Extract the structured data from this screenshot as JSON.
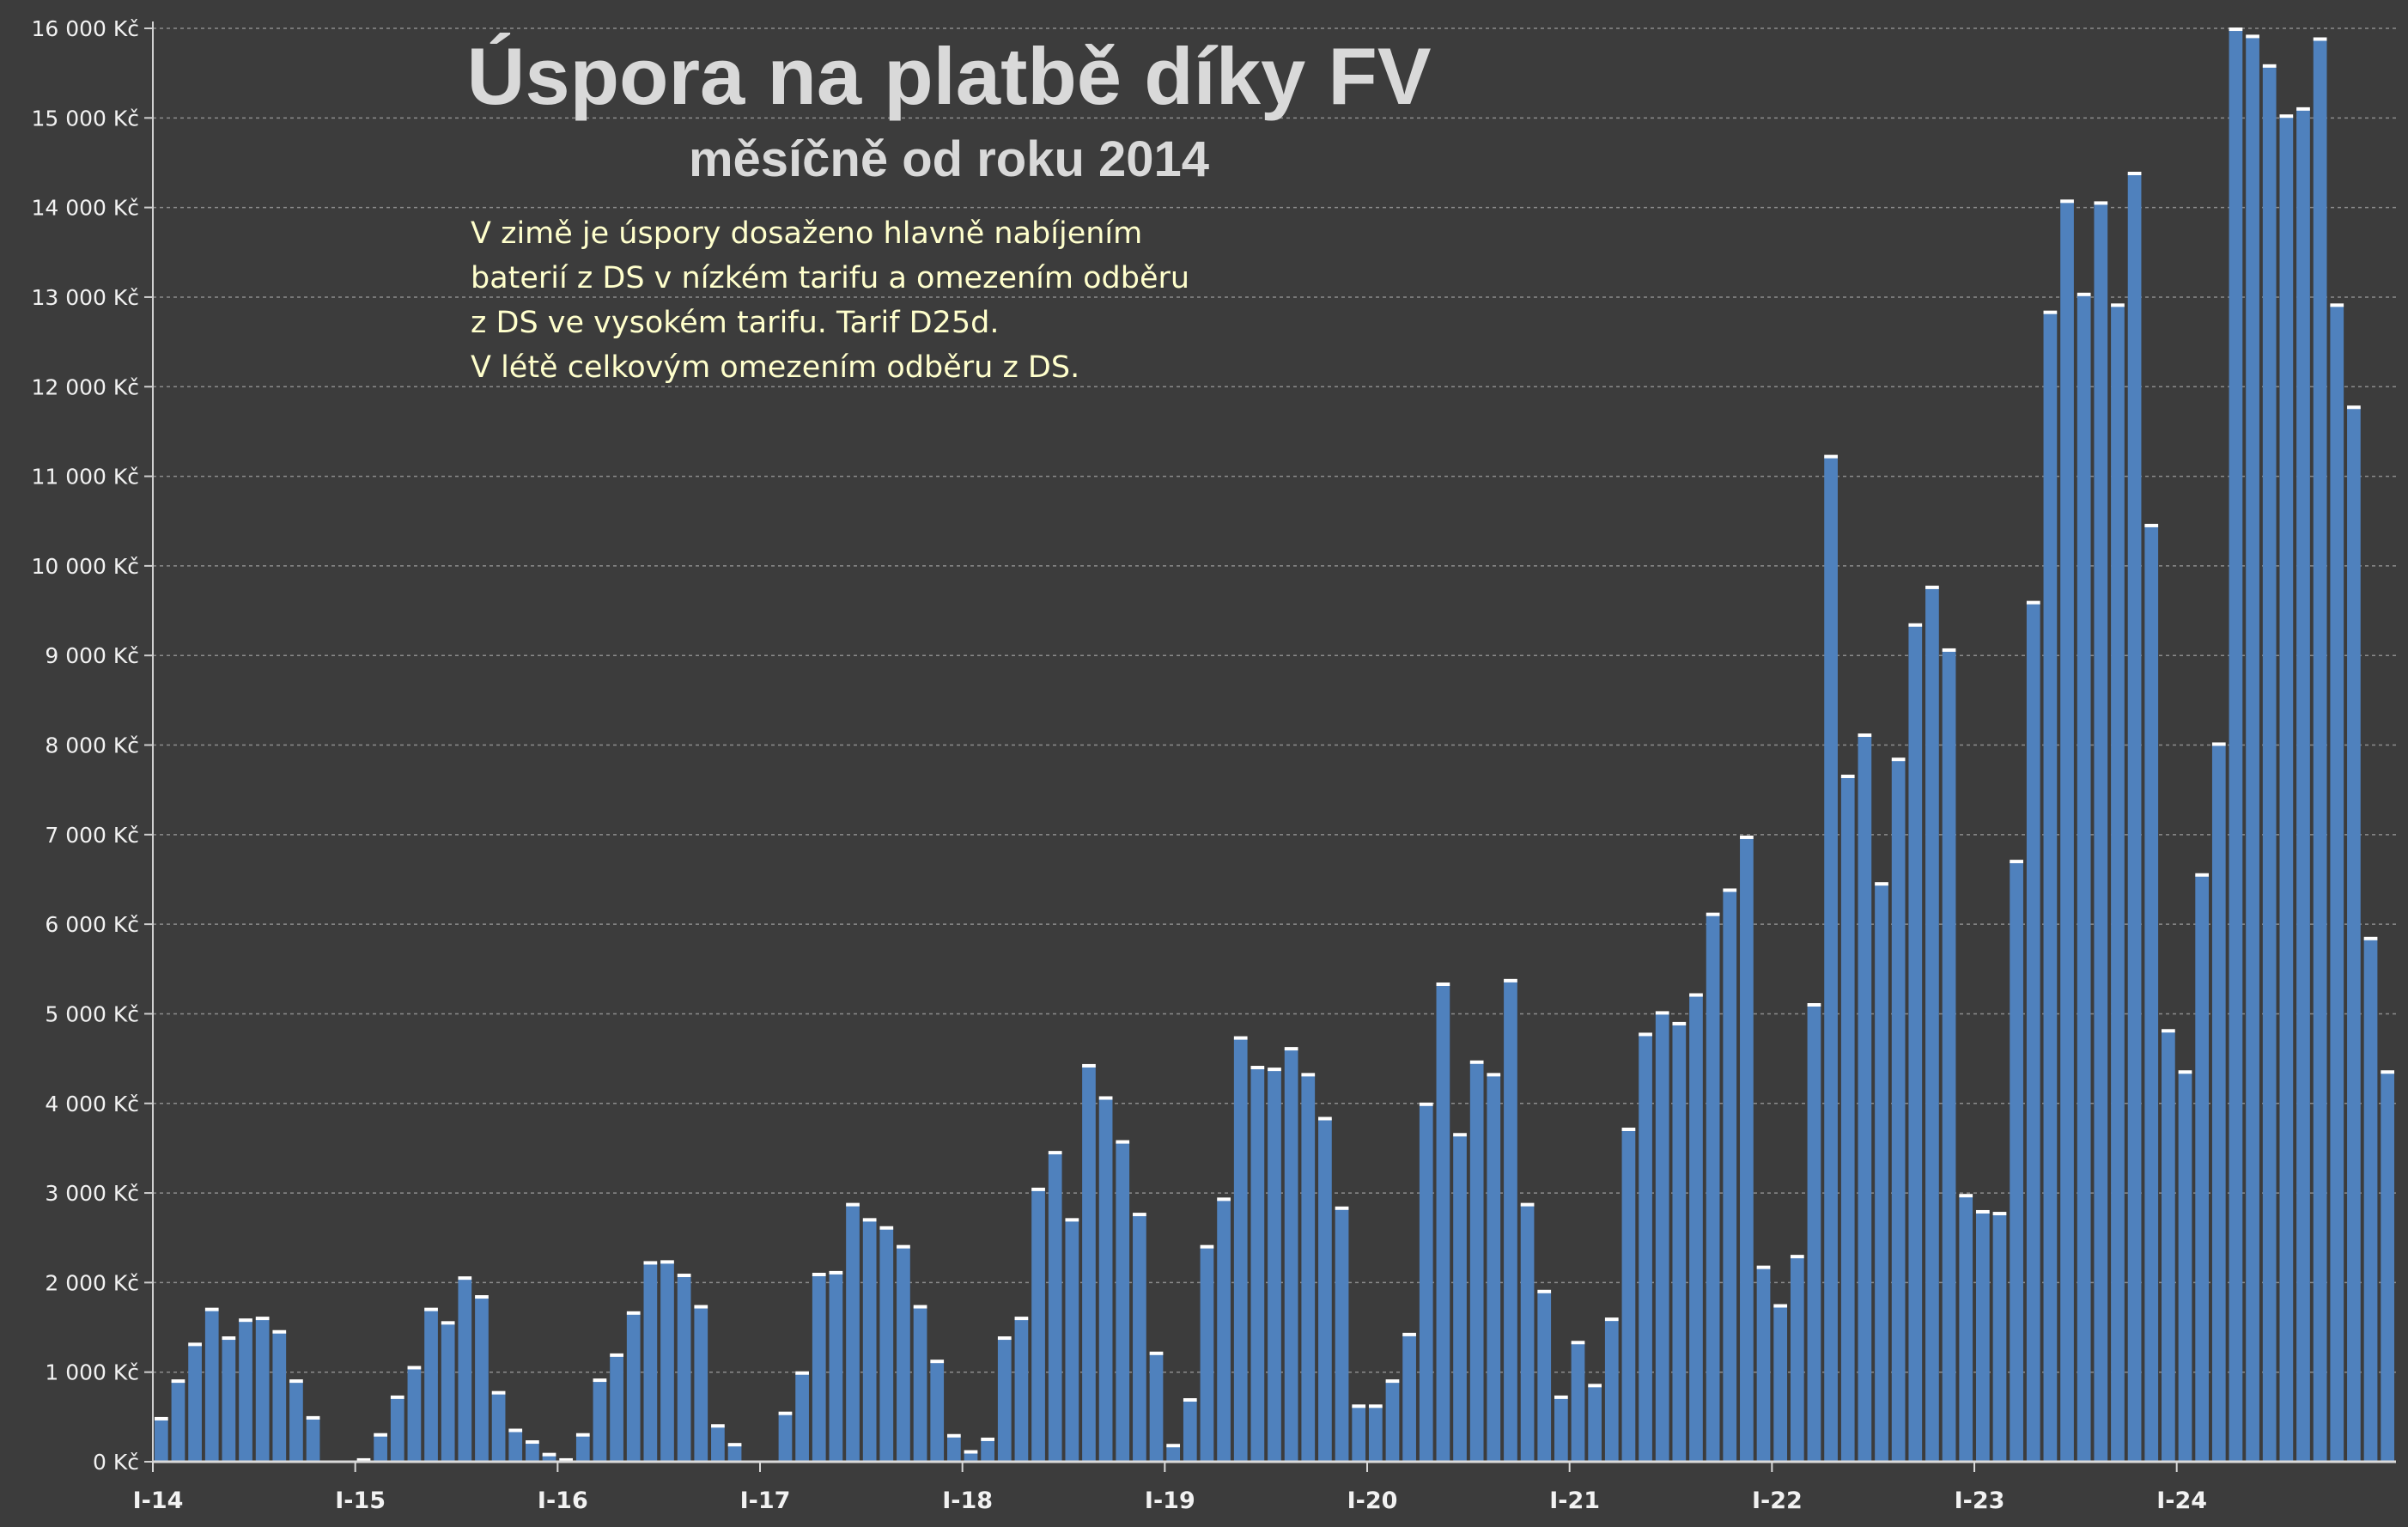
{
  "chart_data": {
    "type": "bar",
    "title": "Úspora na platbě díky FV",
    "subtitle": "měsíčně od roku 2014",
    "annotation": [
      "V zimě je úspory dosaženo hlavně nabíjením",
      "baterií z DS v nízkém tarifu a omezením odběru",
      "z DS ve vysokém tarifu. Tarif D25d.",
      "V létě celkovým omezením odběru z DS."
    ],
    "xlabel": "",
    "ylabel": "",
    "ylim": [
      0,
      16000
    ],
    "y_ticks": [
      0,
      1000,
      2000,
      3000,
      4000,
      5000,
      6000,
      7000,
      8000,
      9000,
      10000,
      11000,
      12000,
      13000,
      14000,
      15000,
      16000
    ],
    "y_tick_labels": [
      "0 Kč",
      "1 000 Kč",
      "2 000 Kč",
      "3 000 Kč",
      "4 000 Kč",
      "5 000 Kč",
      "6 000 Kč",
      "7 000 Kč",
      "8 000 Kč",
      "9 000 Kč",
      "10 000 Kč",
      "11 000 Kč",
      "12 000 Kč",
      "13 000 Kč",
      "14 000 Kč",
      "15 000 Kč",
      "16 000 Kč"
    ],
    "x_tick_labels": [
      "I-14",
      "I-15",
      "I-16",
      "I-17",
      "I-18",
      "I-19",
      "I-20",
      "I-21",
      "I-22",
      "I-23",
      "I-24"
    ],
    "grid": true,
    "legend": "none",
    "bar_color": "#4f81bd",
    "values": [
      480,
      900,
      1310,
      1700,
      1380,
      1580,
      1600,
      1450,
      900,
      490,
      0,
      0,
      20,
      300,
      720,
      1050,
      1700,
      1550,
      2050,
      1840,
      770,
      350,
      220,
      80,
      20,
      300,
      910,
      1190,
      1660,
      2220,
      2230,
      2080,
      1730,
      400,
      190,
      0,
      0,
      540,
      990,
      2090,
      2110,
      2870,
      2700,
      2610,
      2400,
      1730,
      1120,
      290,
      110,
      250,
      1380,
      1600,
      3040,
      3450,
      2700,
      4420,
      4060,
      3570,
      2760,
      1210,
      180,
      690,
      2400,
      2930,
      4730,
      4400,
      4380,
      4610,
      4320,
      3830,
      2830,
      620,
      620,
      900,
      1420,
      3990,
      5330,
      3650,
      4460,
      4320,
      5370,
      2870,
      1900,
      720,
      1330,
      850,
      1590,
      3710,
      4770,
      5010,
      4890,
      5210,
      6110,
      6380,
      6970,
      2170,
      1740,
      2290,
      5100,
      11220,
      7650,
      8110,
      6450,
      7840,
      9340,
      9760,
      9060,
      2970,
      2790,
      2770,
      6700,
      9590,
      12830,
      14070,
      13030,
      14050,
      12910,
      14380,
      10450,
      4810,
      4350,
      6550,
      8010,
      15990,
      15910,
      15580,
      15020,
      15100,
      15880,
      12910,
      11770,
      5840,
      4350
    ]
  },
  "colors": {
    "background": "#3c3c3c",
    "bar": "#4f81bd",
    "grid": "#8c8c8c",
    "title": "#d9d9d9",
    "annotation": "#ffffcc",
    "tick": "#f2f2f2"
  }
}
